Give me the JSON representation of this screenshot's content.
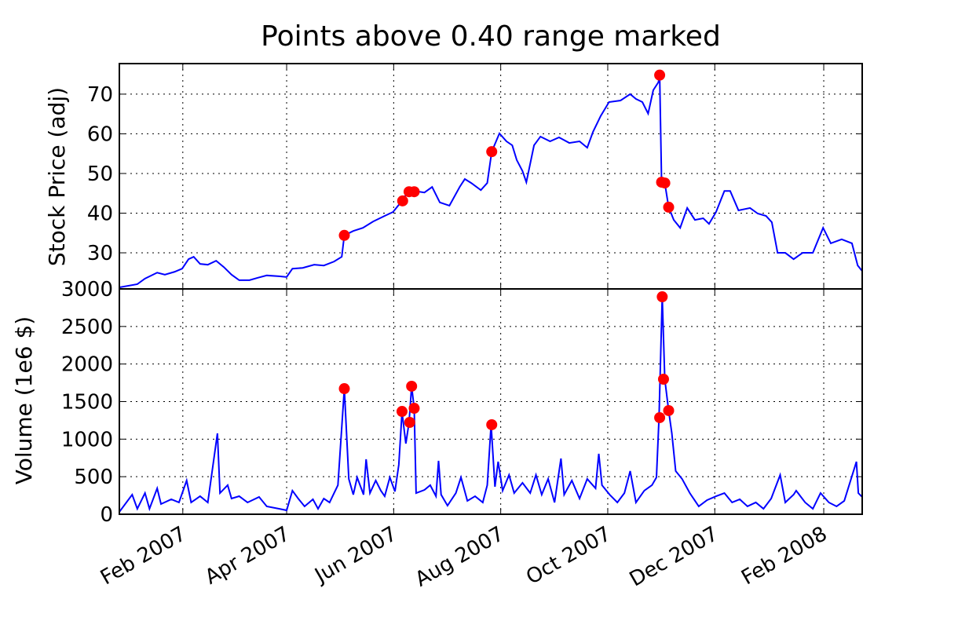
{
  "chart_data": [
    {
      "type": "line",
      "title": "Points above 0.40 range marked",
      "ylabel": "Stock Price (adj)",
      "xlim": [
        2006.986,
        2008.145
      ],
      "ylim": [
        20.9,
        77.7
      ],
      "yticks": [
        30,
        40,
        50,
        60,
        70
      ],
      "grid": true,
      "series": [
        {
          "type": "line",
          "color": "#0000ff",
          "x": [
            2006.986,
            2007.014,
            2007.026,
            2007.045,
            2007.057,
            2007.072,
            2007.084,
            2007.094,
            2007.102,
            2007.112,
            2007.124,
            2007.137,
            2007.149,
            2007.161,
            2007.173,
            2007.189,
            2007.202,
            2007.216,
            2007.235,
            2007.247,
            2007.256,
            2007.272,
            2007.29,
            2007.305,
            2007.321,
            2007.333,
            2007.337,
            2007.351,
            2007.366,
            2007.382,
            2007.4,
            2007.413,
            2007.427,
            2007.437,
            2007.446,
            2007.462,
            2007.474,
            2007.486,
            2007.501,
            2007.517,
            2007.525,
            2007.535,
            2007.55,
            2007.56,
            2007.567,
            2007.579,
            2007.59,
            2007.599,
            2007.606,
            2007.615,
            2007.621,
            2007.633,
            2007.643,
            2007.658,
            2007.672,
            2007.688,
            2007.704,
            2007.716,
            2007.725,
            2007.737,
            2007.75,
            2007.768,
            2007.783,
            2007.792,
            2007.802,
            2007.811,
            2007.819,
            2007.827,
            2007.829,
            2007.832,
            2007.837,
            2007.843,
            2007.851,
            2007.861,
            2007.872,
            2007.884,
            2007.897,
            2007.906,
            2007.917,
            2007.93,
            2007.939,
            2007.952,
            2007.97,
            2007.982,
            2007.995,
            2008.004,
            2008.013,
            2008.025,
            2008.038,
            2008.052,
            2008.068,
            2008.084,
            2008.096,
            2008.113,
            2008.129,
            2008.138,
            2008.145
          ],
          "values": [
            21.3,
            22.1,
            23.5,
            25.0,
            24.5,
            25.2,
            26.0,
            28.4,
            29.0,
            27.2,
            27.0,
            28.0,
            26.4,
            24.5,
            23.1,
            23.1,
            23.7,
            24.3,
            24.1,
            23.9,
            26.0,
            26.2,
            27.0,
            26.8,
            27.8,
            29.0,
            34.4,
            35.5,
            36.3,
            37.9,
            39.3,
            40.3,
            43.1,
            45.6,
            45.6,
            45.2,
            46.6,
            42.7,
            41.9,
            46.6,
            48.6,
            47.6,
            45.8,
            47.6,
            55.5,
            60.1,
            58.1,
            57.1,
            53.4,
            50.6,
            47.8,
            57.1,
            59.3,
            58.1,
            59.1,
            57.7,
            58.1,
            56.5,
            60.5,
            64.5,
            68.0,
            68.4,
            70.0,
            68.8,
            68.0,
            65.1,
            71.0,
            73.0,
            74.8,
            47.8,
            47.6,
            41.5,
            38.3,
            36.3,
            41.3,
            38.3,
            38.7,
            37.3,
            40.3,
            45.6,
            45.6,
            40.7,
            41.3,
            39.9,
            39.3,
            37.7,
            30.0,
            30.0,
            28.4,
            30.0,
            30.0,
            36.3,
            32.4,
            33.4,
            32.4,
            26.8,
            25.4
          ]
        },
        {
          "type": "scatter",
          "color": "#ff0000",
          "x": [
            2007.337,
            2007.428,
            2007.438,
            2007.446,
            2007.567,
            2007.829,
            2007.832,
            2007.837,
            2007.843
          ],
          "values": [
            34.4,
            43.1,
            45.4,
            45.4,
            55.5,
            74.8,
            47.8,
            47.6,
            41.5
          ]
        }
      ]
    },
    {
      "type": "line",
      "ylabel": "Volume (1e6 $)",
      "xlim": [
        2006.986,
        2008.145
      ],
      "ylim": [
        0,
        3000
      ],
      "yticks": [
        0,
        500,
        1000,
        1500,
        2000,
        2500,
        3000
      ],
      "grid": true,
      "xticks": [
        {
          "value": 2007.085,
          "label": "Feb 2007"
        },
        {
          "value": 2007.247,
          "label": "Apr 2007"
        },
        {
          "value": 2007.414,
          "label": "Jun 2007"
        },
        {
          "value": 2007.581,
          "label": "Aug 2007"
        },
        {
          "value": 2007.748,
          "label": "Oct 2007"
        },
        {
          "value": 2007.915,
          "label": "Dec 2007"
        },
        {
          "value": 2008.085,
          "label": "Feb 2008"
        }
      ],
      "series": [
        {
          "type": "line",
          "color": "#0000ff",
          "x": [
            2006.986,
            2007.006,
            2007.014,
            2007.026,
            2007.033,
            2007.045,
            2007.051,
            2007.067,
            2007.079,
            2007.091,
            2007.098,
            2007.112,
            2007.124,
            2007.139,
            2007.143,
            2007.155,
            2007.161,
            2007.173,
            2007.186,
            2007.204,
            2007.216,
            2007.235,
            2007.247,
            2007.256,
            2007.265,
            2007.275,
            2007.288,
            2007.296,
            2007.305,
            2007.314,
            2007.327,
            2007.337,
            2007.344,
            2007.351,
            2007.357,
            2007.367,
            2007.371,
            2007.377,
            2007.386,
            2007.394,
            2007.4,
            2007.408,
            2007.416,
            2007.422,
            2007.427,
            2007.433,
            2007.438,
            2007.442,
            2007.446,
            2007.449,
            2007.462,
            2007.471,
            2007.48,
            2007.484,
            2007.488,
            2007.498,
            2007.511,
            2007.519,
            2007.529,
            2007.541,
            2007.553,
            2007.56,
            2007.566,
            2007.572,
            2007.577,
            2007.584,
            2007.594,
            2007.602,
            2007.615,
            2007.627,
            2007.636,
            2007.645,
            2007.655,
            2007.665,
            2007.675,
            2007.68,
            2007.692,
            2007.704,
            2007.716,
            2007.729,
            2007.734,
            2007.739,
            2007.751,
            2007.763,
            2007.774,
            2007.783,
            2007.792,
            2007.805,
            2007.817,
            2007.824,
            2007.828,
            2007.833,
            2007.837,
            2007.843,
            2007.848,
            2007.854,
            2007.864,
            2007.876,
            2007.89,
            2007.903,
            2007.917,
            2007.93,
            2007.942,
            2007.954,
            2007.966,
            2007.979,
            2007.991,
            2008.003,
            2008.017,
            2008.025,
            2008.038,
            2008.042,
            2008.056,
            2008.068,
            2008.08,
            2008.093,
            2008.105,
            2008.117,
            2008.136,
            2008.139,
            2008.145
          ],
          "values": [
            31,
            261,
            73,
            282,
            73,
            345,
            136,
            199,
            157,
            449,
            157,
            240,
            157,
            1077,
            282,
            387,
            209,
            240,
            157,
            230,
            105,
            73,
            52,
            314,
            209,
            105,
            199,
            73,
            209,
            157,
            387,
            1672,
            470,
            261,
            491,
            261,
            732,
            282,
            449,
            314,
            240,
            491,
            303,
            659,
            1359,
            941,
            1223,
            1704,
            1411,
            282,
            324,
            387,
            240,
            711,
            261,
            115,
            282,
            491,
            178,
            240,
            157,
            387,
            1192,
            366,
            700,
            314,
            523,
            282,
            418,
            282,
            523,
            261,
            470,
            157,
            742,
            261,
            449,
            209,
            470,
            345,
            805,
            387,
            261,
            157,
            282,
            575,
            157,
            314,
            387,
            491,
            1286,
            2895,
            1798,
            1380,
            1077,
            575,
            470,
            282,
            105,
            188,
            240,
            282,
            157,
            199,
            105,
            157,
            73,
            209,
            523,
            157,
            261,
            314,
            157,
            73,
            282,
            157,
            105,
            178,
            700,
            282,
            230
          ]
        },
        {
          "type": "scatter",
          "color": "#ff0000",
          "x": [
            2007.337,
            2007.427,
            2007.439,
            2007.442,
            2007.446,
            2007.567,
            2007.829,
            2007.833,
            2007.835,
            2007.843
          ],
          "values": [
            1672,
            1369,
            1223,
            1704,
            1411,
            1192,
            1286,
            2895,
            1798,
            1380
          ]
        }
      ]
    }
  ]
}
